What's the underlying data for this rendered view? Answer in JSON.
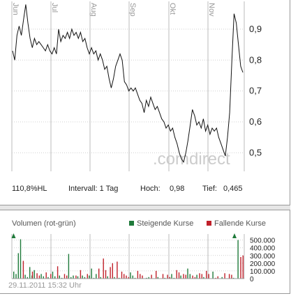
{
  "price_panel": {
    "month_labels": [
      "Jun",
      "Jul",
      "Aug",
      "Sep",
      "Okt",
      "Nov"
    ],
    "y_tick_labels": [
      "0,9",
      "0,8",
      "0,7",
      "0,6",
      "0,5"
    ],
    "watermark": ".comdirect",
    "info": {
      "hl": "110,8%HL",
      "intervall": "Intervall: 1 Tag",
      "hoch_label": "Hoch:",
      "hoch_value": "0,98",
      "tief_label": "Tief:",
      "tief_value": "0,465"
    }
  },
  "volume_panel": {
    "title": "Volumen (rot-grün)",
    "legend_up": "Steigende Kurse",
    "legend_down": "Fallende Kurse",
    "y_tick_labels": [
      "500.000",
      "400.000",
      "300.000",
      "200.000",
      "100.000",
      "0"
    ],
    "timestamp": "29.11.2011 15:32 Uhr"
  },
  "colors": {
    "up": "#1f7a3a",
    "down": "#c0202a",
    "line": "#111111",
    "grid": "#bbbbbb"
  },
  "chart_data": [
    {
      "type": "line",
      "title": "",
      "xlabel": "",
      "ylabel": "",
      "x_axis": "months Jun–Nov 2011",
      "ylim": [
        0.44,
        0.99
      ],
      "series": [
        {
          "values": [
            0.83,
            0.8,
            0.88,
            0.91,
            0.88,
            0.93,
            0.98,
            0.92,
            0.87,
            0.84,
            0.87,
            0.85,
            0.86,
            0.85,
            0.84,
            0.83,
            0.85,
            0.83,
            0.82,
            0.84,
            0.82,
            0.9,
            0.86,
            0.88,
            0.87,
            0.89,
            0.87,
            0.9,
            0.88,
            0.89,
            0.87,
            0.89,
            0.86,
            0.87,
            0.84,
            0.82,
            0.84,
            0.82,
            0.83,
            0.8,
            0.82,
            0.8,
            0.77,
            0.78,
            0.74,
            0.71,
            0.74,
            0.78,
            0.8,
            0.82,
            0.8,
            0.73,
            0.72,
            0.7,
            0.71,
            0.7,
            0.71,
            0.69,
            0.67,
            0.66,
            0.63,
            0.67,
            0.65,
            0.68,
            0.66,
            0.64,
            0.65,
            0.63,
            0.61,
            0.6,
            0.58,
            0.59,
            0.57,
            0.58,
            0.55,
            0.53,
            0.5,
            0.48,
            0.47,
            0.5,
            0.54,
            0.59,
            0.64,
            0.62,
            0.59,
            0.6,
            0.58,
            0.61,
            0.57,
            0.59,
            0.56,
            0.58,
            0.57,
            0.58,
            0.55,
            0.53,
            0.51,
            0.49,
            0.55,
            0.63,
            0.8,
            0.95,
            0.92,
            0.85,
            0.78,
            0.76
          ]
        }
      ]
    },
    {
      "type": "bar",
      "title": "Volumen (rot-grün)",
      "ylim": [
        0,
        560000
      ],
      "series": [
        {
          "name": "Steigende Kurse",
          "values": [
            90000,
            60000,
            330000,
            510000,
            0,
            50000,
            20000,
            150000,
            40000,
            110000,
            0,
            0,
            60000,
            30000,
            0,
            20000,
            0,
            90000,
            30000,
            0,
            40000,
            10000,
            0,
            0,
            320000,
            20000,
            40000,
            0,
            30000,
            0,
            40000,
            20000,
            0,
            40000,
            130000,
            10000,
            60000,
            0,
            20000,
            0,
            0,
            30000,
            0,
            0,
            20000,
            0,
            10000,
            0,
            0,
            0,
            0,
            80000,
            40000,
            10000,
            0,
            0,
            0,
            0,
            10000,
            20000,
            0,
            0,
            0,
            20000,
            0,
            0,
            10000,
            0,
            0,
            60000,
            10000,
            0,
            0,
            40000,
            0,
            0,
            130000,
            60000,
            0,
            0,
            50000,
            0,
            0,
            20000,
            0,
            0,
            0,
            90000,
            0,
            0,
            0,
            20000,
            0,
            0,
            0,
            0,
            10000,
            0,
            500000,
            0,
            0
          ],
          "color": "#1f7a3a"
        },
        {
          "name": "Fallende Kurse",
          "values": [
            0,
            0,
            0,
            0,
            230000,
            0,
            0,
            0,
            90000,
            0,
            70000,
            40000,
            0,
            0,
            80000,
            0,
            60000,
            0,
            0,
            160000,
            0,
            0,
            60000,
            40000,
            0,
            0,
            0,
            40000,
            0,
            110000,
            0,
            0,
            60000,
            0,
            0,
            0,
            0,
            130000,
            0,
            260000,
            110000,
            0,
            150000,
            200000,
            0,
            220000,
            0,
            90000,
            60000,
            40000,
            20000,
            0,
            0,
            0,
            100000,
            60000,
            40000,
            0,
            0,
            0,
            50000,
            0,
            100000,
            0,
            0,
            60000,
            0,
            50000,
            20000,
            0,
            0,
            110000,
            80000,
            0,
            60000,
            50000,
            0,
            0,
            40000,
            20000,
            0,
            70000,
            60000,
            0,
            100000,
            60000,
            0,
            0,
            10000,
            30000,
            0,
            0,
            70000,
            0,
            60000,
            50000,
            0,
            0,
            0,
            280000,
            300000
          ],
          "color": "#c0202a"
        }
      ]
    }
  ]
}
